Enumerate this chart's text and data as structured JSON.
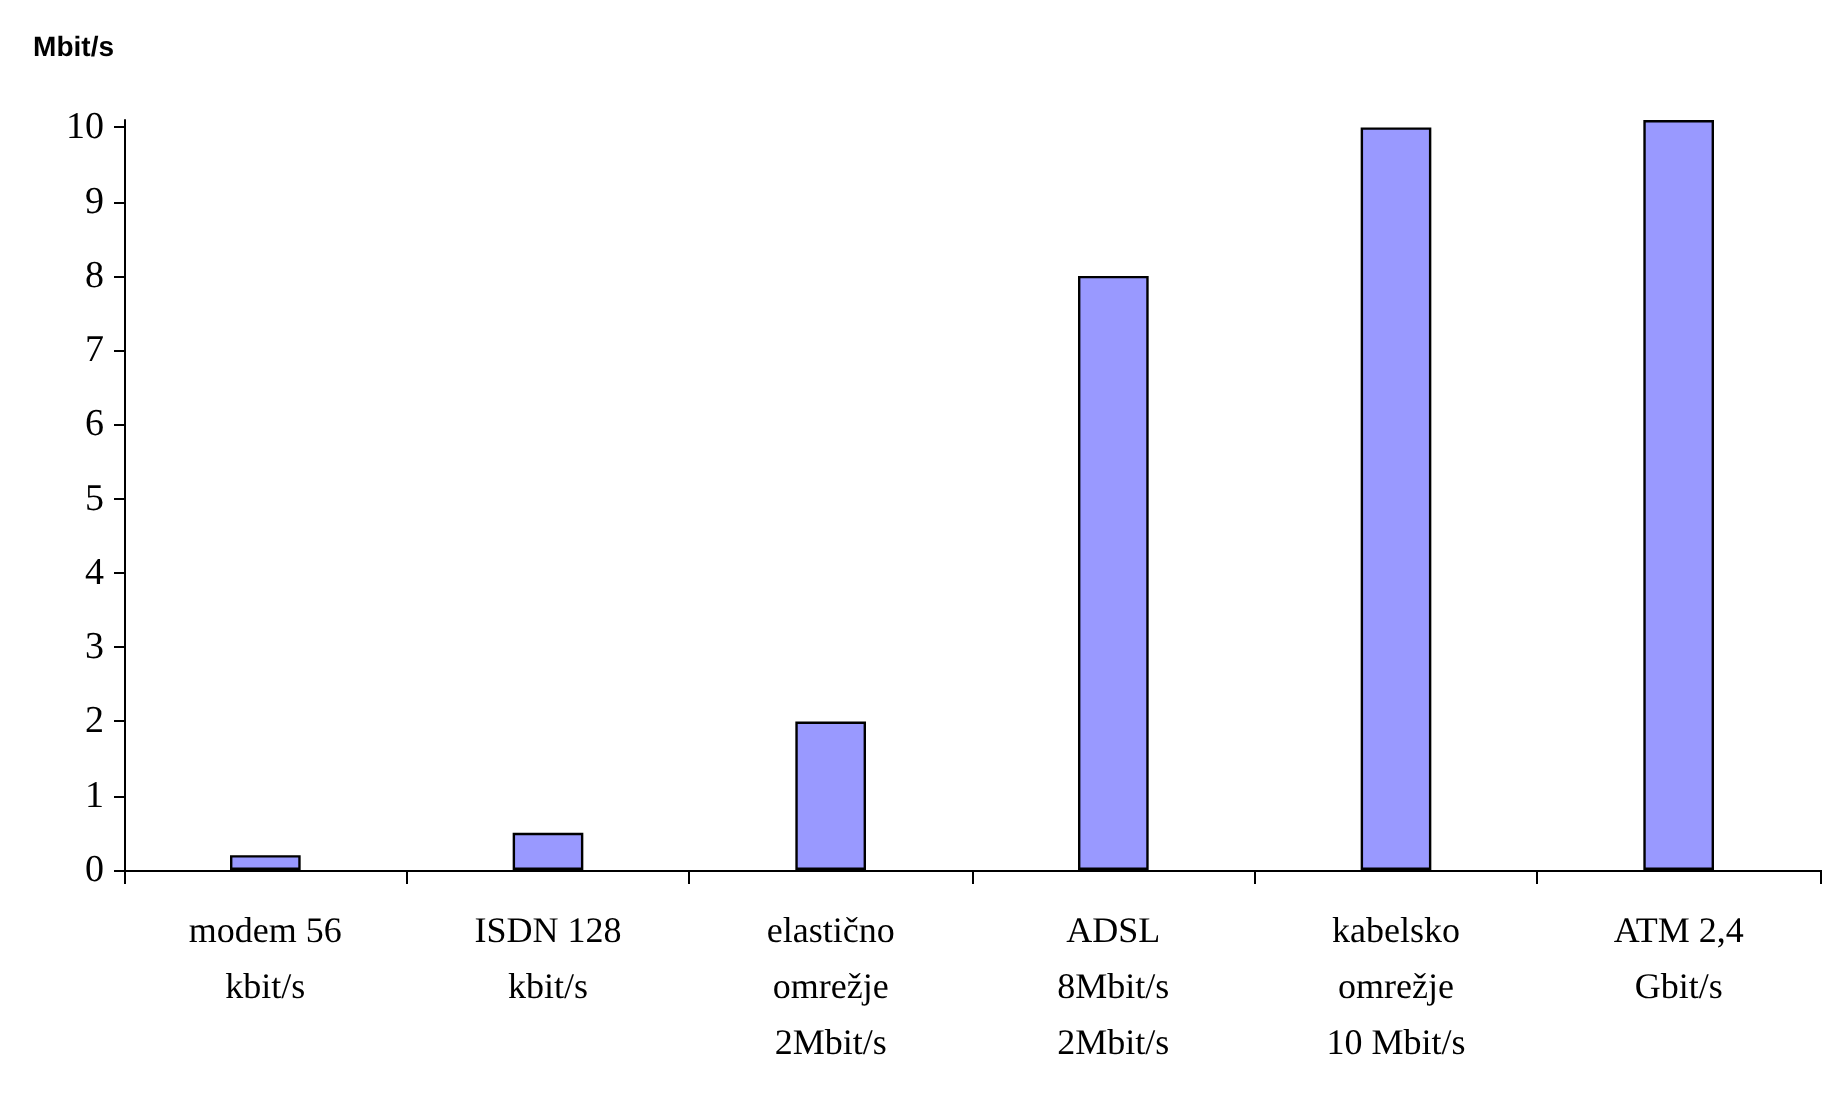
{
  "chart_data": {
    "type": "bar",
    "ylabel": "Mbit/s",
    "categories": [
      "modem 56 kbit/s",
      "ISDN 128 kbit/s",
      "elastično omrežje 2Mbit/s",
      "ADSL 8Mbit/s 2Mbit/s",
      "kabelsko omrežje 10 Mbit/s",
      "ATM 2,4 Gbit/s"
    ],
    "values": [
      0.2,
      0.5,
      2,
      8,
      10,
      10.1
    ],
    "color": "#9999ff",
    "ylim": [
      0,
      10.1
    ],
    "yticks": [
      0,
      1,
      2,
      3,
      4,
      5,
      6,
      7,
      8,
      9,
      10
    ],
    "grid": false
  }
}
